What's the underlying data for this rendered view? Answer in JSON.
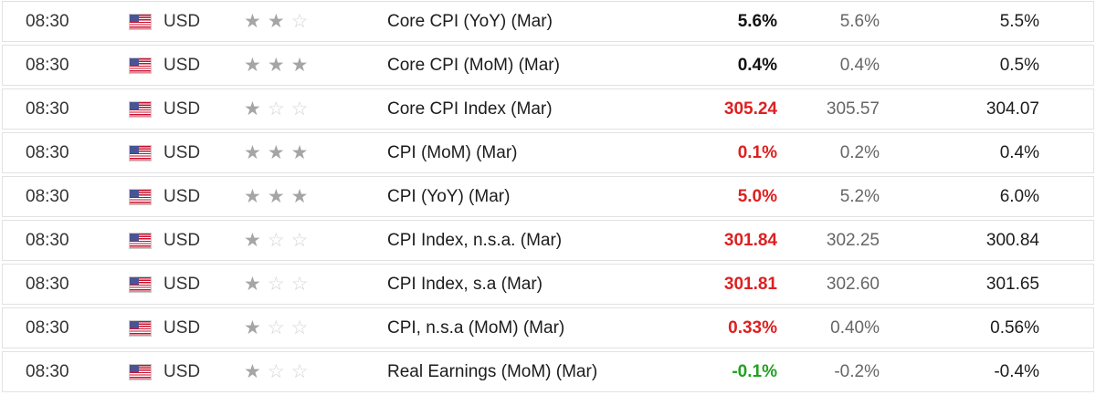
{
  "table": {
    "column_semantics": [
      "time",
      "currency",
      "importance",
      "event",
      "actual",
      "forecast",
      "previous"
    ],
    "rows": [
      {
        "time": "08:30",
        "currency": "USD",
        "flag": "us-flag-icon",
        "importance": 2,
        "event": "Core CPI (YoY) (Mar)",
        "actual": "5.6%",
        "actual_color": "black",
        "forecast": "5.6%",
        "previous": "5.5%"
      },
      {
        "time": "08:30",
        "currency": "USD",
        "flag": "us-flag-icon",
        "importance": 3,
        "event": "Core CPI (MoM) (Mar)",
        "actual": "0.4%",
        "actual_color": "black",
        "forecast": "0.4%",
        "previous": "0.5%"
      },
      {
        "time": "08:30",
        "currency": "USD",
        "flag": "us-flag-icon",
        "importance": 1,
        "event": "Core CPI Index (Mar)",
        "actual": "305.24",
        "actual_color": "red",
        "forecast": "305.57",
        "previous": "304.07"
      },
      {
        "time": "08:30",
        "currency": "USD",
        "flag": "us-flag-icon",
        "importance": 3,
        "event": "CPI (MoM) (Mar)",
        "actual": "0.1%",
        "actual_color": "red",
        "forecast": "0.2%",
        "previous": "0.4%"
      },
      {
        "time": "08:30",
        "currency": "USD",
        "flag": "us-flag-icon",
        "importance": 3,
        "event": "CPI (YoY) (Mar)",
        "actual": "5.0%",
        "actual_color": "red",
        "forecast": "5.2%",
        "previous": "6.0%"
      },
      {
        "time": "08:30",
        "currency": "USD",
        "flag": "us-flag-icon",
        "importance": 1,
        "event": "CPI Index, n.s.a. (Mar)",
        "actual": "301.84",
        "actual_color": "red",
        "forecast": "302.25",
        "previous": "300.84"
      },
      {
        "time": "08:30",
        "currency": "USD",
        "flag": "us-flag-icon",
        "importance": 1,
        "event": "CPI Index, s.a (Mar)",
        "actual": "301.81",
        "actual_color": "red",
        "forecast": "302.60",
        "previous": "301.65"
      },
      {
        "time": "08:30",
        "currency": "USD",
        "flag": "us-flag-icon",
        "importance": 1,
        "event": "CPI, n.s.a (MoM) (Mar)",
        "actual": "0.33%",
        "actual_color": "red",
        "forecast": "0.40%",
        "previous": "0.56%"
      },
      {
        "time": "08:30",
        "currency": "USD",
        "flag": "us-flag-icon",
        "importance": 1,
        "event": "Real Earnings (MoM) (Mar)",
        "actual": "-0.1%",
        "actual_color": "green",
        "forecast": "-0.2%",
        "previous": "-0.4%"
      }
    ]
  },
  "icons": {
    "star_filled_glyph": "★",
    "star_empty_glyph": "☆",
    "stars_max": 3
  },
  "colors": {
    "black": "#111111",
    "red": "#dd2020",
    "green": "#21a121",
    "star_filled": "#a5a5a5",
    "star_empty": "#d4d4d4",
    "row_border": "#e2e2e2",
    "forecast_text": "#666666"
  }
}
